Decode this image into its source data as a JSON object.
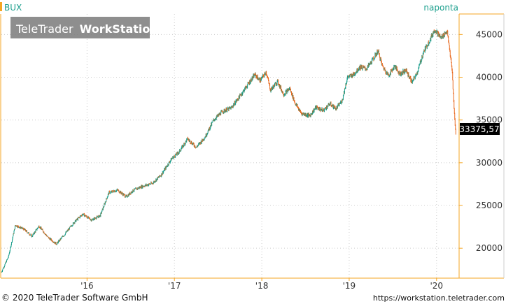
{
  "header": {
    "symbol": "BUX",
    "period": "naponta",
    "watermark_brand": "TeleTrader",
    "watermark_product": "WorkStation"
  },
  "price_badge": "33375,57",
  "footer": {
    "copyright": "© 2020 TeleTrader Software GmbH",
    "url": "https://workstation.teletrader.com"
  },
  "colors": {
    "up": "#1a9e8c",
    "down": "#e8681e",
    "axis": "#f5a623",
    "symbol": "#1a9e8c",
    "badge_bg": "#000000",
    "badge_text": "#ffffff",
    "watermark_bg": "#7a7a7a",
    "grid": "#cccccc"
  },
  "chart_data": {
    "type": "candlestick",
    "series_name": "BUX",
    "frequency": "daily",
    "x_ticks": [
      "'16",
      "'17",
      "'18",
      "'19",
      "'20"
    ],
    "y_ticks": [
      20000,
      25000,
      30000,
      35000,
      40000,
      45000
    ],
    "y_tick_labels": [
      "20000",
      "25000",
      "30000",
      "35000",
      "40000",
      "45000"
    ],
    "ylim": [
      16500,
      47400
    ],
    "xlim": [
      2015.02,
      2020.25
    ],
    "last_value": 33375.57,
    "grid": true,
    "price_path": [
      [
        2015.02,
        17200
      ],
      [
        2015.1,
        19000
      ],
      [
        2015.18,
        22700
      ],
      [
        2015.28,
        22200
      ],
      [
        2015.37,
        21400
      ],
      [
        2015.45,
        22600
      ],
      [
        2015.55,
        21300
      ],
      [
        2015.65,
        20500
      ],
      [
        2015.75,
        21700
      ],
      [
        2015.85,
        23000
      ],
      [
        2015.95,
        24000
      ],
      [
        2016.05,
        23300
      ],
      [
        2016.15,
        23800
      ],
      [
        2016.25,
        26500
      ],
      [
        2016.35,
        26800
      ],
      [
        2016.45,
        26000
      ],
      [
        2016.52,
        26700
      ],
      [
        2016.62,
        27200
      ],
      [
        2016.75,
        27600
      ],
      [
        2016.85,
        28600
      ],
      [
        2016.97,
        30500
      ],
      [
        2017.05,
        31200
      ],
      [
        2017.15,
        32800
      ],
      [
        2017.25,
        31800
      ],
      [
        2017.35,
        33000
      ],
      [
        2017.45,
        35000
      ],
      [
        2017.55,
        36000
      ],
      [
        2017.65,
        36400
      ],
      [
        2017.75,
        37800
      ],
      [
        2017.85,
        39300
      ],
      [
        2017.92,
        40300
      ],
      [
        2017.98,
        39600
      ],
      [
        2018.05,
        40600
      ],
      [
        2018.1,
        38500
      ],
      [
        2018.18,
        39500
      ],
      [
        2018.25,
        38000
      ],
      [
        2018.32,
        38700
      ],
      [
        2018.38,
        37000
      ],
      [
        2018.45,
        35800
      ],
      [
        2018.55,
        35500
      ],
      [
        2018.62,
        36500
      ],
      [
        2018.7,
        36100
      ],
      [
        2018.78,
        36900
      ],
      [
        2018.85,
        36300
      ],
      [
        2018.92,
        37300
      ],
      [
        2018.98,
        40000
      ],
      [
        2019.05,
        40300
      ],
      [
        2019.12,
        41200
      ],
      [
        2019.2,
        41000
      ],
      [
        2019.28,
        42200
      ],
      [
        2019.33,
        43100
      ],
      [
        2019.38,
        41300
      ],
      [
        2019.45,
        40200
      ],
      [
        2019.52,
        41300
      ],
      [
        2019.58,
        40400
      ],
      [
        2019.65,
        40800
      ],
      [
        2019.72,
        39400
      ],
      [
        2019.78,
        40600
      ],
      [
        2019.85,
        42900
      ],
      [
        2019.92,
        44300
      ],
      [
        2019.98,
        45600
      ],
      [
        2020.05,
        44600
      ],
      [
        2020.12,
        45400
      ],
      [
        2020.15,
        43200
      ],
      [
        2020.18,
        40500
      ],
      [
        2020.2,
        36300
      ],
      [
        2020.22,
        33375.57
      ]
    ]
  }
}
